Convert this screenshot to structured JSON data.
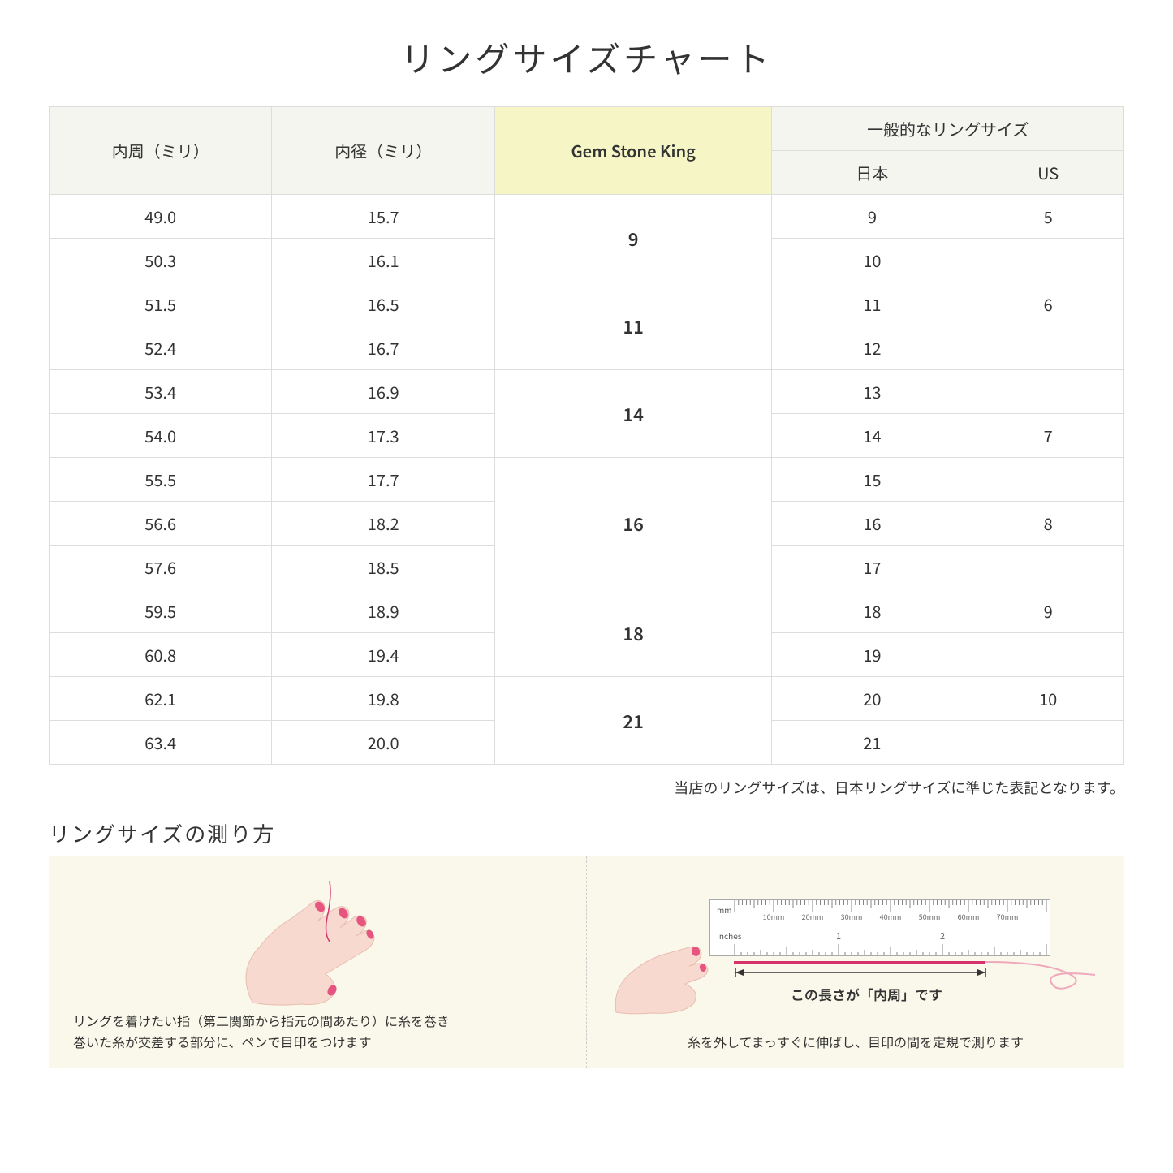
{
  "title": "リングサイズチャート",
  "headers": {
    "circumference": "内周（ミリ）",
    "diameter": "内径（ミリ）",
    "gsk": "Gem Stone King",
    "common": "一般的なリングサイズ",
    "jp": "日本",
    "us": "US"
  },
  "groups": [
    {
      "gsk": "9",
      "rows": [
        {
          "c": "49.0",
          "d": "15.7",
          "jp": "9",
          "us": "5"
        },
        {
          "c": "50.3",
          "d": "16.1",
          "jp": "10",
          "us": ""
        }
      ]
    },
    {
      "gsk": "11",
      "rows": [
        {
          "c": "51.5",
          "d": "16.5",
          "jp": "11",
          "us": "6"
        },
        {
          "c": "52.4",
          "d": "16.7",
          "jp": "12",
          "us": ""
        }
      ]
    },
    {
      "gsk": "14",
      "rows": [
        {
          "c": "53.4",
          "d": "16.9",
          "jp": "13",
          "us": ""
        },
        {
          "c": "54.0",
          "d": "17.3",
          "jp": "14",
          "us": "7"
        }
      ]
    },
    {
      "gsk": "16",
      "rows": [
        {
          "c": "55.5",
          "d": "17.7",
          "jp": "15",
          "us": ""
        },
        {
          "c": "56.6",
          "d": "18.2",
          "jp": "16",
          "us": "8"
        },
        {
          "c": "57.6",
          "d": "18.5",
          "jp": "17",
          "us": ""
        }
      ]
    },
    {
      "gsk": "18",
      "rows": [
        {
          "c": "59.5",
          "d": "18.9",
          "jp": "18",
          "us": "9"
        },
        {
          "c": "60.8",
          "d": "19.4",
          "jp": "19",
          "us": ""
        }
      ]
    },
    {
      "gsk": "21",
      "rows": [
        {
          "c": "62.1",
          "d": "19.8",
          "jp": "20",
          "us": "10"
        },
        {
          "c": "63.4",
          "d": "20.0",
          "jp": "21",
          "us": ""
        }
      ]
    }
  ],
  "note": "当店のリングサイズは、日本リングサイズに準じた表記となります。",
  "howto": {
    "title": "リングサイズの測り方",
    "left_caption": "リングを着けたい指（第二関節から指元の間あたり）に糸を巻き\n巻いた糸が交差する部分に、ペンで目印をつけます",
    "right_label": "この長さが「内周」です",
    "right_caption": "糸を外してまっすぐに伸ばし、目印の間を定規で測ります",
    "ruler_mm": "mm",
    "ruler_inches": "Inches",
    "ruler_mm_ticks": [
      "10mm",
      "20mm",
      "30mm",
      "40mm",
      "50mm",
      "60mm",
      "70mm"
    ],
    "ruler_in_ticks": [
      "1",
      "2"
    ]
  },
  "colors": {
    "header_bg": "#f5f5f0",
    "highlight_bg": "#f5f5c6",
    "border": "#dddddd",
    "howto_bg": "#faf8ea",
    "skin": "#f7d9cf",
    "nail": "#e6557f",
    "thread": "#d6336c"
  }
}
